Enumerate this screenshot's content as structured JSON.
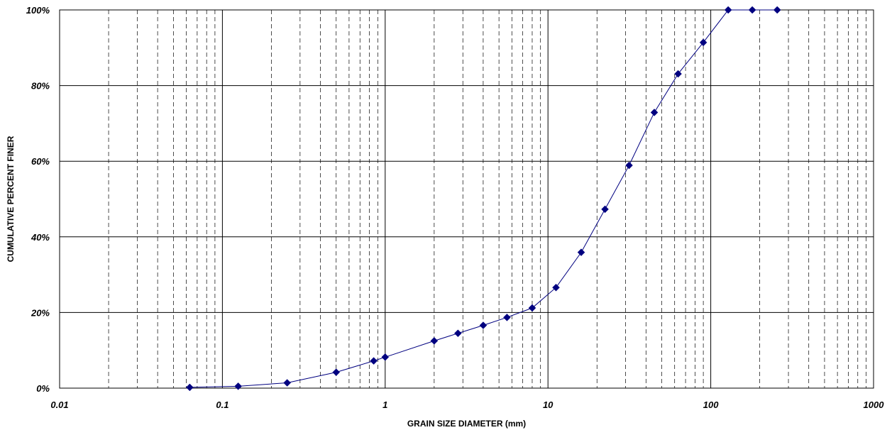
{
  "chart_data": {
    "type": "scatter",
    "title": "",
    "xlabel": "GRAIN SIZE DIAMETER (mm)",
    "ylabel": "CUMULATIVE PERCENT FINER",
    "x_scale": "log",
    "xlim": [
      0.01,
      1000
    ],
    "ylim": [
      0,
      100
    ],
    "x_tick_labels": [
      "0.01",
      "0.1",
      "1",
      "10",
      "100",
      "1000"
    ],
    "y_tick_labels": [
      "0%",
      "20%",
      "40%",
      "60%",
      "80%",
      "100%"
    ],
    "grid": true,
    "legend": "none",
    "line_color": "#000080",
    "marker": "diamond",
    "series": [
      {
        "x": [
          0.063,
          0.125,
          0.25,
          0.5,
          0.85,
          1.0,
          2.0,
          2.8,
          4.0,
          5.6,
          8.0,
          11.2,
          16.0,
          22.4,
          31.5,
          45.0,
          63.0,
          90.0,
          128.0,
          180.0,
          256.0
        ],
        "values": [
          0.2,
          0.5,
          1.4,
          4.2,
          7.2,
          8.2,
          12.5,
          14.5,
          16.6,
          18.7,
          21.2,
          26.6,
          35.9,
          47.3,
          58.9,
          72.9,
          83.1,
          91.4,
          100,
          100,
          100
        ]
      }
    ]
  }
}
